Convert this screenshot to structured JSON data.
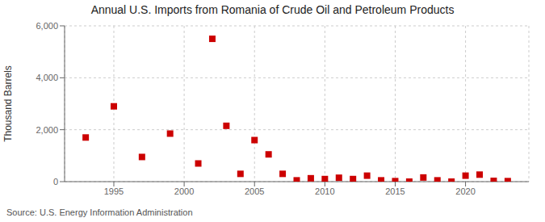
{
  "chart_data": {
    "type": "scatter",
    "title": "Annual U.S. Imports from Romania of Crude Oil and Petroleum Products",
    "ylabel": "Thousand Barrels",
    "source": "Source: U.S. Energy Information Administration",
    "x": [
      1993,
      1995,
      1997,
      1999,
      2001,
      2002,
      2003,
      2004,
      2005,
      2006,
      2007,
      2008,
      2009,
      2010,
      2011,
      2012,
      2013,
      2014,
      2015,
      2016,
      2017,
      2018,
      2019,
      2020,
      2021,
      2022,
      2023
    ],
    "values": [
      1700,
      2900,
      950,
      1850,
      700,
      5500,
      2150,
      300,
      1600,
      1050,
      300,
      50,
      130,
      100,
      150,
      100,
      230,
      50,
      20,
      0,
      160,
      50,
      0,
      230,
      270,
      30,
      20
    ],
    "color": "#cc0000",
    "marker": "square",
    "xlim": [
      1991.5,
      2024.5
    ],
    "xticks": [
      1995,
      2000,
      2005,
      2010,
      2015,
      2020
    ],
    "ylim": [
      0,
      6000
    ],
    "yticks": [
      0,
      {
        "value": 2000,
        "label": "2,000"
      },
      {
        "value": 4000,
        "label": "4,000"
      },
      {
        "value": 6000,
        "label": "6,000"
      }
    ],
    "grid": true
  }
}
